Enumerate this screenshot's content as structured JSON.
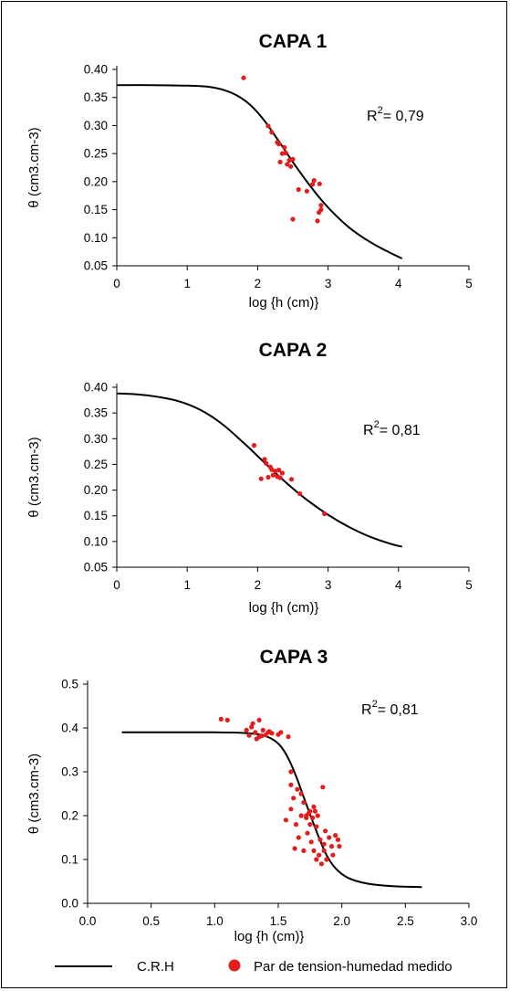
{
  "colors": {
    "curve": "#000000",
    "points": "#e31c1c",
    "axis": "#000000",
    "frame": "#000000"
  },
  "legend": {
    "curve_label": "C.R.H",
    "points_label": "Par de tension-humedad medido",
    "curve_icon": "line-swatch",
    "points_icon": "red-dot-swatch"
  },
  "chart_data": [
    {
      "type": "scatter",
      "title": "CAPA 1",
      "xlabel": "log {h (cm)}",
      "ylabel": "θ (cm3.cm-3)",
      "xlim": [
        0,
        5
      ],
      "ylim": [
        0.05,
        0.4
      ],
      "x_ticks": [
        "0",
        "1",
        "2",
        "3",
        "4",
        "5"
      ],
      "y_ticks": [
        "0.40",
        "0.35",
        "0.30",
        "0.25",
        "0.20",
        "0.15",
        "0.10",
        "0.05"
      ],
      "annotation": {
        "text": "R",
        "sup": "2",
        "value": "= 0,79"
      },
      "grid": false,
      "series": [
        {
          "name": "C.R.H",
          "kind": "line",
          "x": [
            0,
            0.5,
            1.0,
            1.3,
            1.5,
            1.7,
            1.9,
            2.1,
            2.3,
            2.5,
            2.7,
            2.9,
            3.1,
            3.3,
            3.5,
            3.7,
            3.9,
            4.05
          ],
          "y": [
            0.372,
            0.372,
            0.371,
            0.369,
            0.364,
            0.354,
            0.336,
            0.308,
            0.272,
            0.235,
            0.2,
            0.168,
            0.141,
            0.118,
            0.1,
            0.085,
            0.072,
            0.063
          ]
        },
        {
          "name": "Par de tension-humedad medido",
          "kind": "points",
          "x": [
            1.8,
            2.15,
            2.2,
            2.28,
            2.3,
            2.32,
            2.38,
            2.4,
            2.42,
            2.45,
            2.47,
            2.5,
            2.58,
            2.7,
            2.78,
            2.8,
            2.85,
            2.88,
            2.9,
            2.9,
            2.87,
            2.5,
            2.35
          ],
          "y": [
            0.385,
            0.299,
            0.288,
            0.27,
            0.267,
            0.235,
            0.261,
            0.251,
            0.231,
            0.238,
            0.227,
            0.24,
            0.186,
            0.183,
            0.195,
            0.202,
            0.13,
            0.196,
            0.158,
            0.15,
            0.145,
            0.133,
            0.25
          ]
        }
      ]
    },
    {
      "type": "scatter",
      "title": "CAPA 2",
      "xlabel": "log {h (cm)}",
      "ylabel": "θ (cm3.cm-3)",
      "xlim": [
        0,
        5
      ],
      "ylim": [
        0.05,
        0.4
      ],
      "x_ticks": [
        "0",
        "1",
        "2",
        "3",
        "4",
        "5"
      ],
      "y_ticks": [
        "0.40",
        "0.35",
        "0.30",
        "0.25",
        "0.20",
        "0.15",
        "0.10",
        "0.05"
      ],
      "annotation": {
        "text": "R",
        "sup": "2",
        "value": "= 0,81"
      },
      "grid": false,
      "series": [
        {
          "name": "C.R.H",
          "kind": "line",
          "x": [
            0,
            0.3,
            0.6,
            0.9,
            1.2,
            1.5,
            1.8,
            2.1,
            2.4,
            2.7,
            3.0,
            3.3,
            3.6,
            3.9,
            4.05
          ],
          "y": [
            0.388,
            0.386,
            0.381,
            0.372,
            0.355,
            0.328,
            0.292,
            0.253,
            0.215,
            0.181,
            0.152,
            0.128,
            0.109,
            0.095,
            0.09
          ]
        },
        {
          "name": "Par de tension-humedad medido",
          "kind": "points",
          "x": [
            1.95,
            2.05,
            2.1,
            2.12,
            2.15,
            2.2,
            2.22,
            2.25,
            2.28,
            2.3,
            2.32,
            2.35,
            2.48,
            2.6,
            2.95,
            2.18
          ],
          "y": [
            0.287,
            0.222,
            0.26,
            0.252,
            0.225,
            0.24,
            0.229,
            0.237,
            0.226,
            0.239,
            0.224,
            0.233,
            0.221,
            0.193,
            0.154,
            0.245
          ]
        }
      ]
    },
    {
      "type": "scatter",
      "title": "CAPA 3",
      "xlabel": "log {h (cm)}",
      "ylabel": "θ (cm3.cm-3)",
      "xlim": [
        0,
        3
      ],
      "ylim": [
        0,
        0.5
      ],
      "x_ticks": [
        "0.0",
        "0.5",
        "1.0",
        "1.5",
        "2.0",
        "2.5",
        "3.0"
      ],
      "y_ticks": [
        "0.5",
        "0.4",
        "0.3",
        "0.2",
        "0.1",
        "0.0"
      ],
      "annotation": {
        "text": "R",
        "sup": "2",
        "value": "= 0,81"
      },
      "grid": false,
      "series": [
        {
          "name": "C.R.H",
          "kind": "line",
          "x": [
            0.27,
            0.6,
            1.0,
            1.2,
            1.35,
            1.45,
            1.52,
            1.58,
            1.64,
            1.7,
            1.76,
            1.82,
            1.88,
            1.95,
            2.05,
            2.2,
            2.4,
            2.63
          ],
          "y": [
            0.39,
            0.39,
            0.39,
            0.389,
            0.385,
            0.375,
            0.358,
            0.33,
            0.29,
            0.242,
            0.195,
            0.15,
            0.11,
            0.08,
            0.058,
            0.045,
            0.039,
            0.037
          ]
        },
        {
          "name": "Par de tension-humedad medido",
          "kind": "points",
          "x": [
            1.05,
            1.1,
            1.25,
            1.27,
            1.3,
            1.32,
            1.33,
            1.35,
            1.37,
            1.38,
            1.4,
            1.42,
            1.45,
            1.5,
            1.52,
            1.58,
            1.6,
            1.6,
            1.62,
            1.64,
            1.65,
            1.66,
            1.68,
            1.7,
            1.7,
            1.72,
            1.72,
            1.73,
            1.75,
            1.75,
            1.76,
            1.77,
            1.78,
            1.78,
            1.79,
            1.8,
            1.81,
            1.82,
            1.83,
            1.84,
            1.85,
            1.86,
            1.87,
            1.88,
            1.9,
            1.92,
            1.93,
            1.95,
            1.97,
            1.98,
            1.56,
            1.6,
            1.63,
            1.68,
            1.74,
            1.8,
            1.86,
            1.43,
            1.35,
            1.29
          ],
          "y": [
            0.42,
            0.418,
            0.395,
            0.383,
            0.41,
            0.39,
            0.375,
            0.418,
            0.382,
            0.395,
            0.384,
            0.39,
            0.388,
            0.385,
            0.39,
            0.38,
            0.3,
            0.215,
            0.24,
            0.18,
            0.26,
            0.15,
            0.2,
            0.23,
            0.12,
            0.2,
            0.195,
            0.16,
            0.21,
            0.18,
            0.14,
            0.195,
            0.22,
            0.12,
            0.21,
            0.175,
            0.2,
            0.11,
            0.145,
            0.09,
            0.265,
            0.12,
            0.165,
            0.1,
            0.15,
            0.13,
            0.11,
            0.155,
            0.145,
            0.13,
            0.19,
            0.27,
            0.125,
            0.25,
            0.205,
            0.1,
            0.135,
            0.392,
            0.38,
            0.402
          ]
        }
      ]
    }
  ]
}
